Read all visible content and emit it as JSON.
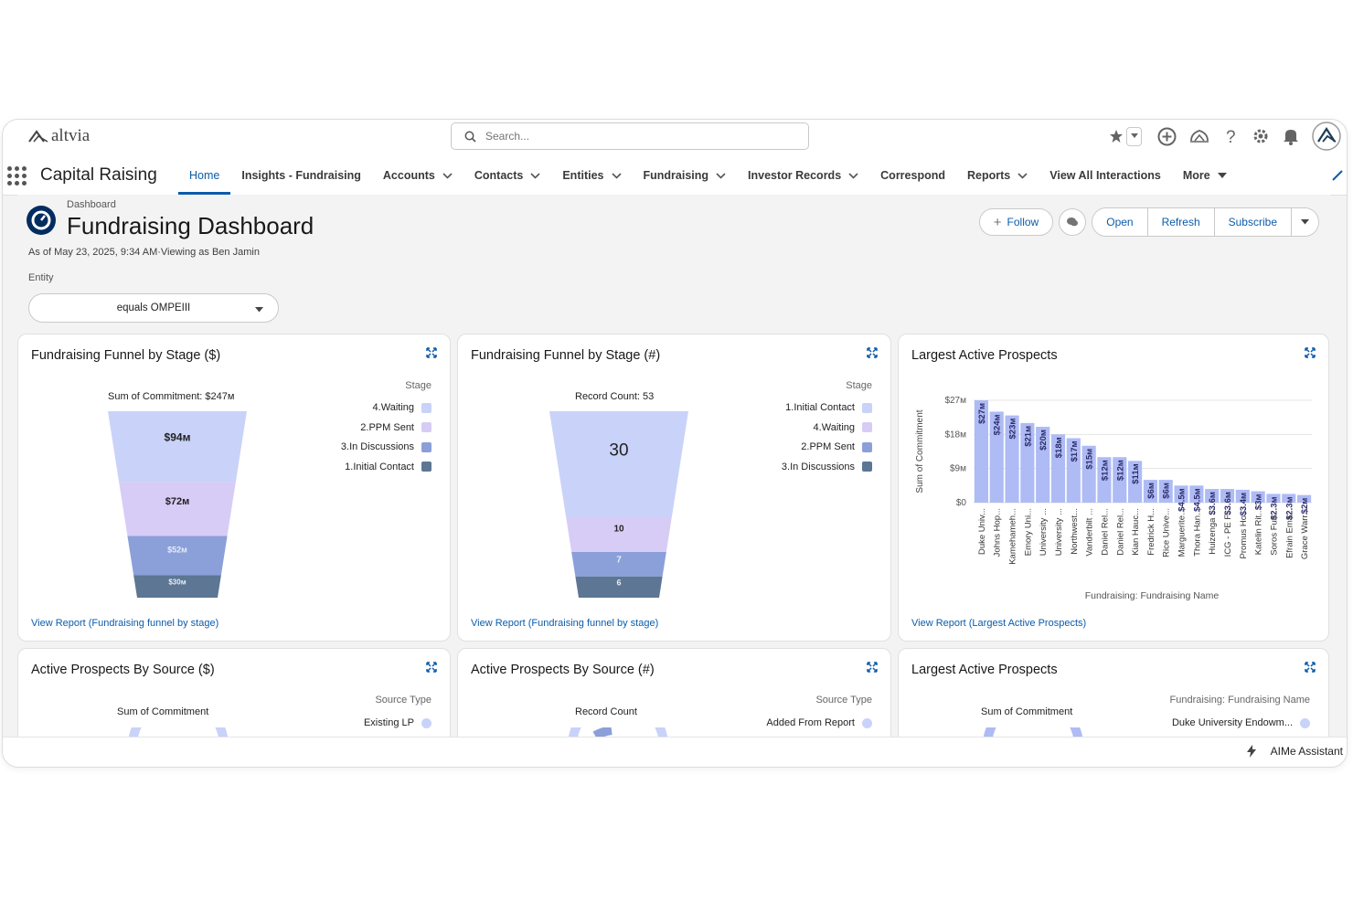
{
  "brand": {
    "name": "altvia"
  },
  "search": {
    "placeholder": "Search..."
  },
  "utility_icons": [
    "star-icon",
    "favorites-dropdown-icon",
    "add-icon",
    "trailhead-icon",
    "help-icon",
    "setup-gear-icon",
    "notification-bell-icon",
    "user-avatar-icon"
  ],
  "nav": {
    "app_name": "Capital Raising",
    "tabs": [
      {
        "label": "Home",
        "active": true,
        "dropdown": false
      },
      {
        "label": "Insights - Fundraising",
        "dropdown": false
      },
      {
        "label": "Accounts",
        "dropdown": true
      },
      {
        "label": "Contacts",
        "dropdown": true
      },
      {
        "label": "Entities",
        "dropdown": true
      },
      {
        "label": "Fundraising",
        "dropdown": true
      },
      {
        "label": "Investor Records",
        "dropdown": true
      },
      {
        "label": "Correspond",
        "dropdown": false
      },
      {
        "label": "Reports",
        "dropdown": true
      },
      {
        "label": "View All Interactions",
        "dropdown": false
      },
      {
        "label": "More",
        "dropdown": true
      }
    ]
  },
  "header": {
    "breadcrumb": "Dashboard",
    "title": "Fundraising Dashboard",
    "as_of": "As of May 23, 2025, 9:34 AM·Viewing as Ben Jamin",
    "filter_label": "Entity",
    "filter_value": "equals OMPEIII",
    "actions": {
      "follow": "Follow",
      "open": "Open",
      "refresh": "Refresh",
      "subscribe": "Subscribe"
    }
  },
  "cards": {
    "funnel_amount": {
      "title": "Fundraising Funnel by Stage ($)",
      "header": "Sum of Commitment: $247м",
      "legend_title": "Stage",
      "legend": [
        "4.Waiting",
        "2.PPM Sent",
        "3.In Discussions",
        "1.Initial Contact"
      ],
      "colors": [
        "#c9d2f9",
        "#d7ccf6",
        "#8b9fd9",
        "#5c7694"
      ],
      "segments": [
        {
          "label": "$94м",
          "value": 94
        },
        {
          "label": "$72м",
          "value": 72
        },
        {
          "label": "$52м",
          "value": 52
        },
        {
          "label": "$30м",
          "value": 30
        }
      ],
      "view_report": "View Report (Fundraising funnel by stage)"
    },
    "funnel_count": {
      "title": "Fundraising Funnel by Stage (#)",
      "header": "Record Count: 53",
      "legend_title": "Stage",
      "legend": [
        "1.Initial Contact",
        "4.Waiting",
        "2.PPM Sent",
        "3.In Discussions"
      ],
      "colors": [
        "#c9d2f9",
        "#d7ccf6",
        "#8b9fd9",
        "#5c7694"
      ],
      "segments": [
        {
          "label": "30",
          "value": 30
        },
        {
          "label": "10",
          "value": 10
        },
        {
          "label": "7",
          "value": 7
        },
        {
          "label": "6",
          "value": 6
        }
      ],
      "view_report": "View Report (Fundraising funnel by stage)"
    },
    "largest_prospects": {
      "title": "Largest Active Prospects",
      "view_report": "View Report (Largest Active Prospects)"
    },
    "source_amount": {
      "title": "Active Prospects By Source ($)",
      "header": "Sum of Commitment",
      "legend_title": "Source Type",
      "legend": [
        "Existing LP"
      ],
      "colors": [
        "#c9d2f9"
      ]
    },
    "source_count": {
      "title": "Active Prospects By Source (#)",
      "header": "Record Count",
      "legend_title": "Source Type",
      "legend": [
        "Added From Report"
      ],
      "colors": [
        "#c9d2f9"
      ]
    },
    "largest_prospects_2": {
      "title": "Largest Active Prospects",
      "header": "Sum of Commitment",
      "legend_title": "Fundraising: Fundraising Name",
      "legend": [
        "Duke University Endowm..."
      ],
      "colors": [
        "#c9d2f9"
      ]
    }
  },
  "chart_data": [
    {
      "type": "funnel",
      "title": "Fundraising Funnel by Stage ($)",
      "header": "Sum of Commitment: $247м",
      "categories": [
        "4.Waiting",
        "2.PPM Sent",
        "3.In Discussions",
        "1.Initial Contact"
      ],
      "values": [
        94,
        72,
        52,
        30
      ],
      "labels": [
        "$94м",
        "$72м",
        "$52м",
        "$30м"
      ],
      "legend_placement": "top-right"
    },
    {
      "type": "funnel",
      "title": "Fundraising Funnel by Stage (#)",
      "header": "Record Count: 53",
      "categories": [
        "1.Initial Contact",
        "4.Waiting",
        "2.PPM Sent",
        "3.In Discussions"
      ],
      "values": [
        30,
        10,
        7,
        6
      ],
      "labels": [
        "30",
        "10",
        "7",
        "6"
      ],
      "legend_placement": "top-right"
    },
    {
      "type": "bar",
      "title": "Largest Active Prospects",
      "xlabel": "Fundraising: Fundraising Name",
      "ylabel": "Sum of Commitment",
      "ylim": [
        0,
        27
      ],
      "yticks": [
        "$27м",
        "$18м",
        "$9м",
        "$0"
      ],
      "ytick_values": [
        27,
        18,
        9,
        0
      ],
      "categories": [
        "Duke Univ...",
        "Johns Hop...",
        "Kamehameh...",
        "Emory Uni...",
        "University ...",
        "University ...",
        "Northwest...",
        "Vanderbilt ...",
        "Daniel Rel...",
        "Daniel Rel...",
        "Kian Hauc...",
        "Fredrick H...",
        "Rice Unive...",
        "Marguerite...",
        "Thora Han...",
        "Huizenga ...",
        "ICG - PE F...",
        "Promus Ho...",
        "Katelin Rit...",
        "Soros Fun...",
        "Efrain Ema...",
        "Grace Warr..."
      ],
      "values": [
        27,
        24,
        23,
        21,
        20,
        18,
        17,
        15,
        12,
        12,
        11,
        6,
        6,
        4.5,
        4.5,
        3.6,
        3.6,
        3.4,
        3,
        2.3,
        2.3,
        2
      ],
      "labels": [
        "$27м",
        "$24м",
        "$23м",
        "$21м",
        "$20м",
        "$18м",
        "$17м",
        "$15м",
        "$12м",
        "$12м",
        "$11м",
        "$6м",
        "$6м",
        "$4.5м",
        "$4.5м",
        "$3.6м",
        "$3.6м",
        "$3.4м",
        "$3м",
        "$2.3м",
        "$2.3м",
        "$2м"
      ],
      "grid": true,
      "color": "#aebbf5"
    }
  ],
  "assistant": {
    "label": "AIMe Assistant"
  }
}
